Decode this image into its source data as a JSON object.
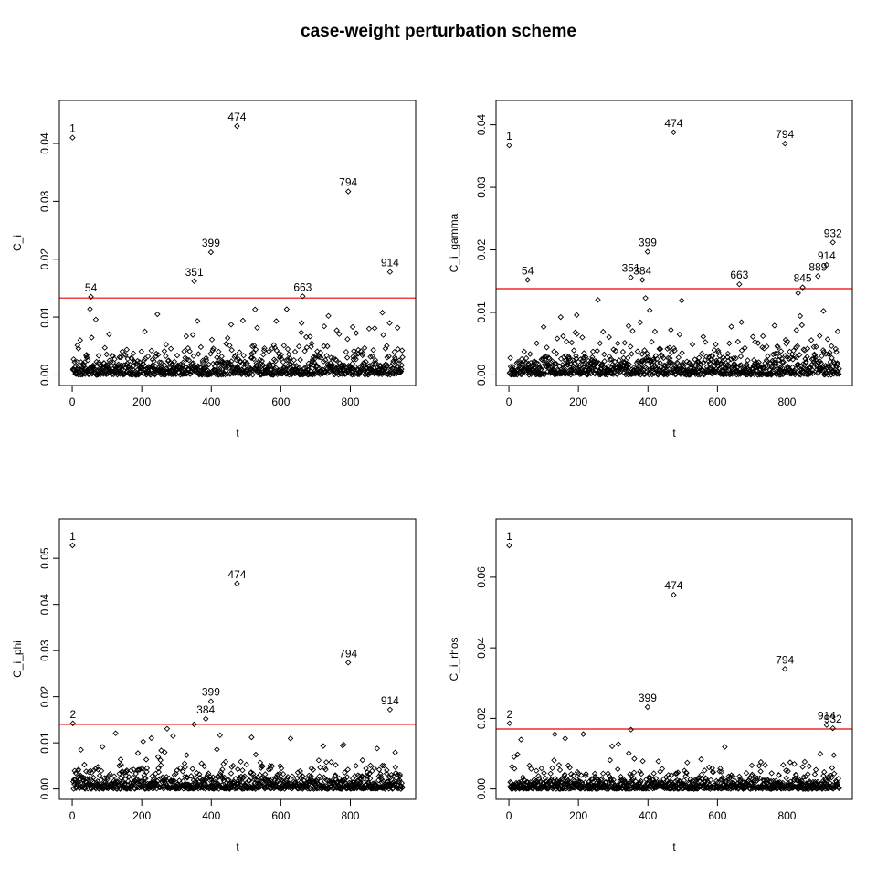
{
  "title": "case-weight perturbation scheme",
  "colors": {
    "points": "#000000",
    "axis": "#000000",
    "threshold": "#ee0000",
    "background": "#ffffff"
  },
  "chart_data": [
    {
      "type": "scatter",
      "panel": "top-left",
      "xlabel": "t",
      "ylabel": "C_i",
      "x_range": [
        1,
        950
      ],
      "n_points": 950,
      "seed": 11,
      "ylim": [
        0,
        0.0456
      ],
      "xticks": [
        {
          "v": 0,
          "label": "0"
        },
        {
          "v": 200,
          "label": "200"
        },
        {
          "v": 400,
          "label": "400"
        },
        {
          "v": 600,
          "label": "600"
        },
        {
          "v": 800,
          "label": "800"
        }
      ],
      "yticks": [
        {
          "v": 0,
          "label": "0.00"
        },
        {
          "v": 0.01,
          "label": "0.01"
        },
        {
          "v": 0.02,
          "label": "0.02"
        },
        {
          "v": 0.03,
          "label": "0.03"
        },
        {
          "v": 0.04,
          "label": "0.04"
        }
      ],
      "threshold": 0.0133,
      "labeled_points": [
        {
          "label": "1",
          "x": 1,
          "y": 0.041
        },
        {
          "label": "54",
          "x": 54,
          "y": 0.0135
        },
        {
          "label": "351",
          "x": 351,
          "y": 0.0162
        },
        {
          "label": "399",
          "x": 399,
          "y": 0.0212
        },
        {
          "label": "474",
          "x": 474,
          "y": 0.043
        },
        {
          "label": "663",
          "x": 663,
          "y": 0.0136
        },
        {
          "label": "794",
          "x": 794,
          "y": 0.0317
        },
        {
          "label": "914",
          "x": 914,
          "y": 0.0178
        }
      ]
    },
    {
      "type": "scatter",
      "panel": "top-right",
      "xlabel": "t",
      "ylabel": "C_i_gamma",
      "x_range": [
        1,
        950
      ],
      "n_points": 950,
      "seed": 22,
      "ylim": [
        0,
        0.0422
      ],
      "xticks": [
        {
          "v": 0,
          "label": "0"
        },
        {
          "v": 200,
          "label": "200"
        },
        {
          "v": 400,
          "label": "400"
        },
        {
          "v": 600,
          "label": "600"
        },
        {
          "v": 800,
          "label": "800"
        }
      ],
      "yticks": [
        {
          "v": 0,
          "label": "0.00"
        },
        {
          "v": 0.01,
          "label": "0.01"
        },
        {
          "v": 0.02,
          "label": "0.02"
        },
        {
          "v": 0.03,
          "label": "0.03"
        },
        {
          "v": 0.04,
          "label": "0.04"
        }
      ],
      "threshold": 0.0138,
      "labeled_points": [
        {
          "label": "1",
          "x": 1,
          "y": 0.0367
        },
        {
          "label": "54",
          "x": 54,
          "y": 0.0152
        },
        {
          "label": "351",
          "x": 351,
          "y": 0.0156
        },
        {
          "label": "384",
          "x": 384,
          "y": 0.0152
        },
        {
          "label": "399",
          "x": 399,
          "y": 0.0197
        },
        {
          "label": "474",
          "x": 474,
          "y": 0.0388
        },
        {
          "label": "663",
          "x": 663,
          "y": 0.0145
        },
        {
          "label": "794",
          "x": 794,
          "y": 0.037
        },
        {
          "label": "845",
          "x": 845,
          "y": 0.014
        },
        {
          "label": "889",
          "x": 889,
          "y": 0.0158
        },
        {
          "label": "914",
          "x": 914,
          "y": 0.0176
        },
        {
          "label": "932",
          "x": 932,
          "y": 0.0212
        }
      ]
    },
    {
      "type": "scatter",
      "panel": "bottom-left",
      "xlabel": "t",
      "ylabel": "C_i_phi",
      "x_range": [
        1,
        950
      ],
      "n_points": 950,
      "seed": 33,
      "ylim": [
        0,
        0.0563
      ],
      "xticks": [
        {
          "v": 0,
          "label": "0"
        },
        {
          "v": 200,
          "label": "200"
        },
        {
          "v": 400,
          "label": "400"
        },
        {
          "v": 600,
          "label": "600"
        },
        {
          "v": 800,
          "label": "800"
        }
      ],
      "yticks": [
        {
          "v": 0,
          "label": "0.00"
        },
        {
          "v": 0.01,
          "label": "0.01"
        },
        {
          "v": 0.02,
          "label": "0.02"
        },
        {
          "v": 0.03,
          "label": "0.03"
        },
        {
          "v": 0.04,
          "label": "0.04"
        },
        {
          "v": 0.05,
          "label": "0.05"
        }
      ],
      "threshold": 0.014,
      "labeled_points": [
        {
          "label": "1",
          "x": 1,
          "y": 0.0528
        },
        {
          "label": "2",
          "x": 2,
          "y": 0.0142
        },
        {
          "label": "",
          "x": 351,
          "y": 0.014
        },
        {
          "label": "384",
          "x": 384,
          "y": 0.0152
        },
        {
          "label": "399",
          "x": 399,
          "y": 0.019
        },
        {
          "label": "474",
          "x": 474,
          "y": 0.0445
        },
        {
          "label": "794",
          "x": 794,
          "y": 0.0274
        },
        {
          "label": "914",
          "x": 914,
          "y": 0.0172
        }
      ]
    },
    {
      "type": "scatter",
      "panel": "bottom-right",
      "xlabel": "t",
      "ylabel": "C_i_rhos",
      "x_range": [
        1,
        950
      ],
      "n_points": 950,
      "seed": 44,
      "ylim": [
        0,
        0.0736
      ],
      "xticks": [
        {
          "v": 0,
          "label": "0"
        },
        {
          "v": 200,
          "label": "200"
        },
        {
          "v": 400,
          "label": "400"
        },
        {
          "v": 600,
          "label": "600"
        },
        {
          "v": 800,
          "label": "800"
        }
      ],
      "yticks": [
        {
          "v": 0,
          "label": "0.00"
        },
        {
          "v": 0.02,
          "label": "0.02"
        },
        {
          "v": 0.04,
          "label": "0.04"
        },
        {
          "v": 0.06,
          "label": "0.06"
        }
      ],
      "threshold": 0.017,
      "labeled_points": [
        {
          "label": "1",
          "x": 1,
          "y": 0.069
        },
        {
          "label": "2",
          "x": 2,
          "y": 0.0186
        },
        {
          "label": "",
          "x": 351,
          "y": 0.0168
        },
        {
          "label": "399",
          "x": 399,
          "y": 0.0232
        },
        {
          "label": "474",
          "x": 474,
          "y": 0.055
        },
        {
          "label": "794",
          "x": 794,
          "y": 0.034
        },
        {
          "label": "914",
          "x": 914,
          "y": 0.0181
        },
        {
          "label": "932",
          "x": 932,
          "y": 0.0172
        }
      ]
    }
  ]
}
